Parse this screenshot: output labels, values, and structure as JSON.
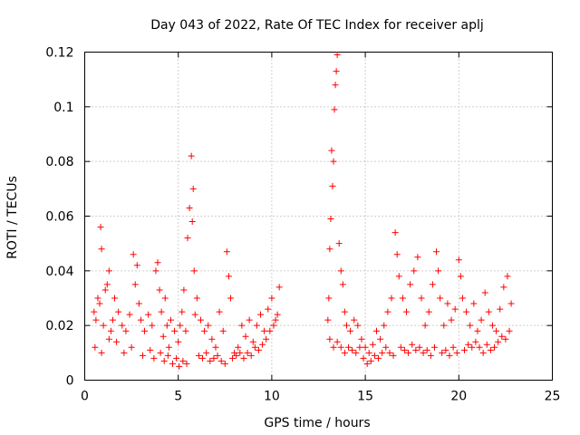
{
  "chart_data": {
    "type": "scatter",
    "title": "Day 043 of 2022, Rate Of TEC Index for receiver aplj",
    "xlabel": "GPS time / hours",
    "ylabel": "ROTI / TECUs",
    "xlim": [
      0,
      25
    ],
    "ylim": [
      0,
      0.12
    ],
    "x_ticks": [
      "0",
      "5",
      "10",
      "15",
      "20",
      "25"
    ],
    "y_ticks": [
      "0",
      "0.02",
      "0.04",
      "0.06",
      "0.08",
      "0.1",
      "0.12"
    ],
    "grid": true,
    "marker": "+",
    "color": "#ff0000",
    "series": [
      {
        "x": [
          0.5,
          0.6,
          0.7,
          0.8,
          0.85,
          0.9,
          1.0,
          1.1,
          1.2,
          1.3,
          1.4,
          1.5,
          1.6,
          1.8,
          2.0,
          2.2,
          2.4,
          2.6,
          2.7,
          2.8,
          2.9,
          3.0,
          3.2,
          3.4,
          3.6,
          3.8,
          3.9,
          4.0,
          4.1,
          4.2,
          4.3,
          4.4,
          4.5,
          4.6,
          4.8,
          5.0,
          5.1,
          5.2,
          5.3,
          5.4,
          5.5,
          5.6,
          5.7,
          5.75,
          5.8,
          5.85,
          5.9,
          6.0,
          6.2,
          6.4,
          6.6,
          6.8,
          7.0,
          7.2,
          7.4,
          7.6,
          7.7,
          7.8,
          8.0,
          8.2,
          8.4,
          8.6,
          8.8,
          9.0,
          9.2,
          9.4,
          9.6,
          9.8,
          10.0,
          10.2,
          10.4
        ],
        "y": [
          0.025,
          0.022,
          0.03,
          0.028,
          0.056,
          0.048,
          0.02,
          0.033,
          0.035,
          0.04,
          0.018,
          0.022,
          0.03,
          0.025,
          0.02,
          0.018,
          0.024,
          0.046,
          0.035,
          0.042,
          0.028,
          0.022,
          0.018,
          0.024,
          0.02,
          0.04,
          0.043,
          0.033,
          0.025,
          0.016,
          0.03,
          0.02,
          0.012,
          0.022,
          0.018,
          0.014,
          0.02,
          0.025,
          0.033,
          0.018,
          0.052,
          0.063,
          0.082,
          0.058,
          0.07,
          0.04,
          0.024,
          0.03,
          0.022,
          0.018,
          0.02,
          0.015,
          0.012,
          0.025,
          0.018,
          0.047,
          0.038,
          0.03,
          0.01,
          0.012,
          0.02,
          0.016,
          0.022,
          0.014,
          0.02,
          0.024,
          0.018,
          0.026,
          0.03,
          0.022,
          0.034
        ]
      },
      {
        "x": [
          0.55,
          0.9,
          1.3,
          1.7,
          2.1,
          2.5,
          3.1,
          3.5,
          3.7,
          4.05,
          4.25,
          4.45,
          4.7,
          4.9,
          5.05,
          5.25,
          5.45,
          6.1,
          6.3,
          6.5,
          6.7,
          6.9,
          7.1,
          7.3,
          7.5,
          7.9,
          8.1,
          8.3,
          8.5,
          8.7,
          8.9,
          9.1,
          9.3,
          9.5,
          9.7,
          9.9,
          10.1,
          10.3
        ],
        "y": [
          0.012,
          0.01,
          0.015,
          0.014,
          0.01,
          0.012,
          0.009,
          0.011,
          0.008,
          0.01,
          0.007,
          0.009,
          0.006,
          0.008,
          0.005,
          0.007,
          0.006,
          0.009,
          0.008,
          0.01,
          0.007,
          0.008,
          0.009,
          0.007,
          0.006,
          0.008,
          0.009,
          0.01,
          0.008,
          0.01,
          0.009,
          0.012,
          0.011,
          0.013,
          0.015,
          0.018,
          0.02,
          0.024
        ]
      },
      {
        "x": [
          13.0,
          13.05,
          13.1,
          13.15,
          13.2,
          13.25,
          13.3,
          13.35,
          13.4,
          13.45,
          13.5,
          13.6,
          13.7,
          13.8,
          13.9,
          14.0,
          14.2,
          14.4,
          14.6,
          14.8,
          15.0,
          15.2,
          15.4,
          15.6,
          15.8,
          16.0,
          16.2,
          16.4,
          16.6,
          16.7,
          16.8,
          17.0,
          17.2,
          17.4,
          17.6,
          17.8,
          18.0,
          18.2,
          18.4,
          18.6,
          18.8,
          18.9,
          19.0,
          19.2,
          19.4,
          19.6,
          19.8,
          20.0,
          20.1,
          20.2,
          20.4,
          20.6,
          20.8,
          21.0,
          21.2,
          21.4,
          21.6,
          21.8,
          22.0,
          22.2,
          22.4,
          22.6,
          22.8
        ],
        "y": [
          0.022,
          0.03,
          0.048,
          0.059,
          0.084,
          0.071,
          0.08,
          0.099,
          0.108,
          0.113,
          0.119,
          0.05,
          0.04,
          0.035,
          0.025,
          0.02,
          0.018,
          0.022,
          0.02,
          0.015,
          0.012,
          0.01,
          0.013,
          0.018,
          0.015,
          0.02,
          0.025,
          0.03,
          0.054,
          0.046,
          0.038,
          0.03,
          0.025,
          0.035,
          0.04,
          0.045,
          0.03,
          0.02,
          0.025,
          0.035,
          0.047,
          0.04,
          0.03,
          0.02,
          0.028,
          0.022,
          0.026,
          0.044,
          0.038,
          0.03,
          0.025,
          0.02,
          0.028,
          0.018,
          0.022,
          0.032,
          0.025,
          0.02,
          0.018,
          0.026,
          0.034,
          0.038,
          0.028
        ]
      },
      {
        "x": [
          13.1,
          13.3,
          13.5,
          13.7,
          13.9,
          14.1,
          14.3,
          14.5,
          14.7,
          14.9,
          15.1,
          15.3,
          15.5,
          15.7,
          15.9,
          16.1,
          16.3,
          16.5,
          16.9,
          17.1,
          17.3,
          17.5,
          17.7,
          17.9,
          18.1,
          18.3,
          18.5,
          18.7,
          19.1,
          19.3,
          19.5,
          19.7,
          19.9,
          20.3,
          20.5,
          20.7,
          20.9,
          21.1,
          21.3,
          21.5,
          21.7,
          21.9,
          22.1,
          22.3,
          22.5,
          22.7
        ],
        "y": [
          0.015,
          0.012,
          0.014,
          0.012,
          0.01,
          0.012,
          0.011,
          0.01,
          0.012,
          0.008,
          0.006,
          0.007,
          0.009,
          0.008,
          0.01,
          0.012,
          0.01,
          0.009,
          0.012,
          0.011,
          0.01,
          0.013,
          0.011,
          0.012,
          0.01,
          0.011,
          0.009,
          0.012,
          0.01,
          0.011,
          0.009,
          0.012,
          0.01,
          0.011,
          0.013,
          0.012,
          0.014,
          0.012,
          0.01,
          0.013,
          0.011,
          0.012,
          0.014,
          0.016,
          0.015,
          0.018
        ]
      }
    ]
  }
}
